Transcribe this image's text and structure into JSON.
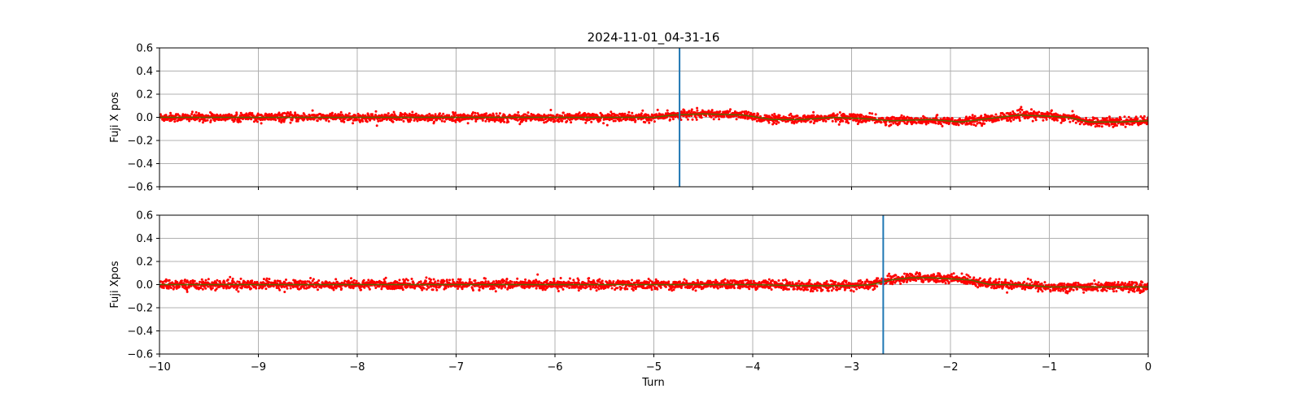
{
  "figure": {
    "title": "2024-11-01_04-31-16",
    "xlabel": "Turn"
  },
  "colors": {
    "points": "#ff0000",
    "trend": "#556b00",
    "marker": "#1f77b4",
    "grid": "#b0b0b0"
  },
  "chart_data": [
    {
      "type": "scatter",
      "ylabel": "Fuji X pos",
      "xlim": [
        -10,
        0
      ],
      "ylim": [
        -0.6,
        0.6
      ],
      "xticks": [
        -10,
        -9,
        -8,
        -7,
        -6,
        -5,
        -4,
        -3,
        -2,
        -1,
        0
      ],
      "yticks": [
        -0.6,
        -0.4,
        -0.2,
        0.0,
        0.2,
        0.4,
        0.6
      ],
      "xticklabels_visible": false,
      "grid": true,
      "marker_line_x": -4.74,
      "trend": [
        [
          -10,
          0.0
        ],
        [
          -8,
          0.0
        ],
        [
          -6,
          0.0
        ],
        [
          -5,
          0.0
        ],
        [
          -4.8,
          0.02
        ],
        [
          -4.5,
          0.03
        ],
        [
          -4.1,
          0.02
        ],
        [
          -3.8,
          -0.02
        ],
        [
          -3.5,
          -0.02
        ],
        [
          -3.2,
          0.0
        ],
        [
          -2.9,
          -0.01
        ],
        [
          -2.6,
          -0.03
        ],
        [
          -2.2,
          -0.02
        ],
        [
          -1.9,
          -0.04
        ],
        [
          -1.6,
          -0.01
        ],
        [
          -1.3,
          0.02
        ],
        [
          -1.0,
          0.01
        ],
        [
          -0.8,
          0.0
        ],
        [
          -0.6,
          -0.04
        ],
        [
          -0.3,
          -0.04
        ],
        [
          0,
          -0.03
        ]
      ],
      "scatter_spread": 0.04
    },
    {
      "type": "scatter",
      "ylabel": "Fuji Xpos",
      "xlim": [
        -10,
        0
      ],
      "ylim": [
        -0.6,
        0.6
      ],
      "xticks": [
        -10,
        -9,
        -8,
        -7,
        -6,
        -5,
        -4,
        -3,
        -2,
        -1,
        0
      ],
      "yticks": [
        -0.6,
        -0.4,
        -0.2,
        0.0,
        0.2,
        0.4,
        0.6
      ],
      "xticklabels_visible": true,
      "grid": true,
      "marker_line_x": -2.68,
      "trend": [
        [
          -10,
          0.0
        ],
        [
          -8,
          0.0
        ],
        [
          -6,
          0.0
        ],
        [
          -4,
          0.0
        ],
        [
          -3.5,
          -0.01
        ],
        [
          -3.0,
          -0.01
        ],
        [
          -2.8,
          0.0
        ],
        [
          -2.6,
          0.04
        ],
        [
          -2.4,
          0.06
        ],
        [
          -2.2,
          0.06
        ],
        [
          -2.0,
          0.05
        ],
        [
          -1.8,
          0.04
        ],
        [
          -1.6,
          0.0
        ],
        [
          -1.3,
          0.0
        ],
        [
          -1.0,
          -0.02
        ],
        [
          -0.6,
          -0.02
        ],
        [
          -0.3,
          -0.02
        ],
        [
          0,
          -0.02
        ]
      ],
      "scatter_spread": 0.045
    }
  ]
}
